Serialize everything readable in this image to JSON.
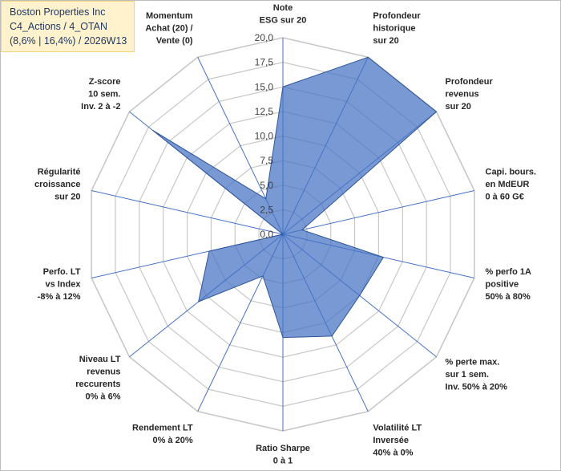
{
  "title": {
    "line1": "Boston Properties Inc",
    "line2": "C4_Actions / 4_OTAN",
    "line3": "(8,6% | 16,4%) / 2026W13"
  },
  "chart_data": {
    "type": "radar",
    "ylim": [
      0,
      20
    ],
    "tick_step": 2.5,
    "tick_labels": [
      "0,0",
      "2,5",
      "5,0",
      "7,5",
      "10,0",
      "12,5",
      "15,0",
      "17,5",
      "20,0"
    ],
    "axes": [
      [
        "Note",
        "ESG sur 20"
      ],
      [
        "Profondeur",
        "historique",
        "sur 20"
      ],
      [
        "Profondeur",
        "revenus",
        "sur 20"
      ],
      [
        "Capi. bours.",
        "en MdEUR",
        "0 à 60 G€"
      ],
      [
        "% perfo 1A",
        "positive",
        "50% à 80%"
      ],
      [
        "% perte max.",
        "sur 1 sem.",
        "Inv. 50% à 20%"
      ],
      [
        "Volatilité LT",
        "Inversée",
        "40% à 0%"
      ],
      [
        "Ratio Sharpe",
        "0 à 1"
      ],
      [
        "Rendement LT",
        "0% à 20%"
      ],
      [
        "Niveau LT",
        "revenus",
        "reccurents",
        "0% à 6%"
      ],
      [
        "Perfo. LT",
        "vs Index",
        "-8% à 12%"
      ],
      [
        "Régularité",
        "croissance",
        "sur 20"
      ],
      [
        "Z-score",
        "10 sem.",
        "Inv. 2 à -2"
      ],
      [
        "Momentum",
        "Achat (20) /",
        "Vente (0)"
      ]
    ],
    "series": [
      {
        "name": "Boston Properties Inc",
        "values": [
          15,
          20,
          20,
          2,
          10.5,
          10,
          11.5,
          10.5,
          4.7,
          11,
          7.7,
          0,
          17,
          4
        ],
        "fill": "#4472c4",
        "fill_opacity": 0.72,
        "stroke": "#2f5597"
      }
    ],
    "grid_color": "#c8c8c8",
    "spoke_color": "#4472c4"
  }
}
